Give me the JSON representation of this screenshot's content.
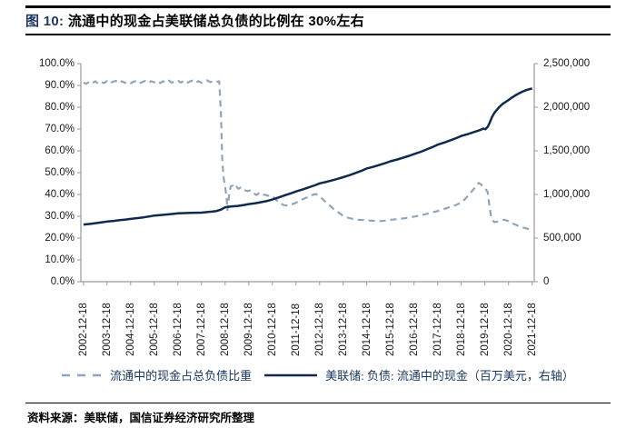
{
  "header": {
    "figure_label": "图 10:",
    "title": "流通中的现金占美联储总负债的比例在 30%左右"
  },
  "footer": {
    "source_label": "资料来源：",
    "source_text": "美联储，国信证券经济研究所整理"
  },
  "colors": {
    "ratio_line": "#8FA5BC",
    "cash_line": "#10294E",
    "axis": "#9a9a9a",
    "figure_number_accent": "#1F3864"
  },
  "chart_data": {
    "type": "line",
    "title": "流通中的现金占美联储总负债的比例在 30%左右",
    "legend_position": "bottom",
    "grid": false,
    "x_domain": [
      2002.85,
      2022.05
    ],
    "x_axis": {
      "tick_labels": [
        "2002-12-18",
        "2003-12-18",
        "2004-12-18",
        "2005-12-18",
        "2006-12-18",
        "2007-12-18",
        "2008-12-18",
        "2009-12-18",
        "2010-12-18",
        "2011-12-18",
        "2012-12-18",
        "2013-12-18",
        "2014-12-18",
        "2015-12-18",
        "2016-12-18",
        "2017-12-18",
        "2018-12-18",
        "2019-12-18",
        "2020-12-18",
        "2021-12-18"
      ],
      "tick_years": [
        2002.96,
        2003.96,
        2004.96,
        2005.96,
        2006.96,
        2007.96,
        2008.96,
        2009.96,
        2010.96,
        2011.96,
        2012.96,
        2013.96,
        2014.96,
        2015.96,
        2016.96,
        2017.96,
        2018.96,
        2019.96,
        2020.96,
        2021.96
      ]
    },
    "left_axis": {
      "min": 0,
      "max": 100,
      "tick_values": [
        100,
        90,
        80,
        70,
        60,
        50,
        40,
        30,
        20,
        10,
        0
      ],
      "tick_labels": [
        "100.0%",
        "90.0%",
        "80.0%",
        "70.0%",
        "60.0%",
        "50.0%",
        "40.0%",
        "30.0%",
        "20.0%",
        "10.0%",
        "0.0%"
      ]
    },
    "right_axis": {
      "min": 0,
      "max": 2500000,
      "tick_values": [
        2500000,
        2000000,
        1500000,
        1000000,
        500000,
        0
      ],
      "tick_labels": [
        "2,500,000",
        "2,000,000",
        "1,500,000",
        "1,000,000",
        "500,000",
        "0"
      ]
    },
    "series": [
      {
        "name": "流通中的现金占总负债比重",
        "axis": "left",
        "style": "dashed",
        "color": "#8FA5BC",
        "points": [
          [
            2002.96,
            91.3
          ],
          [
            2003.08,
            90.7
          ],
          [
            2003.21,
            91.8
          ],
          [
            2003.33,
            91.0
          ],
          [
            2003.46,
            91.9
          ],
          [
            2003.58,
            90.8
          ],
          [
            2003.71,
            91.6
          ],
          [
            2003.83,
            91.1
          ],
          [
            2003.96,
            92.0
          ],
          [
            2004.08,
            91.0
          ],
          [
            2004.21,
            91.7
          ],
          [
            2004.33,
            92.1
          ],
          [
            2004.46,
            91.1
          ],
          [
            2004.58,
            91.9
          ],
          [
            2004.71,
            91.2
          ],
          [
            2004.83,
            91.8
          ],
          [
            2004.96,
            91.0
          ],
          [
            2005.08,
            91.7
          ],
          [
            2005.21,
            92.0
          ],
          [
            2005.33,
            90.9
          ],
          [
            2005.46,
            91.6
          ],
          [
            2005.58,
            92.1
          ],
          [
            2005.71,
            91.2
          ],
          [
            2005.83,
            91.9
          ],
          [
            2005.96,
            91.4
          ],
          [
            2006.08,
            92.1
          ],
          [
            2006.21,
            91.1
          ],
          [
            2006.33,
            91.9
          ],
          [
            2006.46,
            91.3
          ],
          [
            2006.58,
            92.2
          ],
          [
            2006.71,
            91.2
          ],
          [
            2006.83,
            92.0
          ],
          [
            2006.96,
            92.3
          ],
          [
            2007.08,
            91.3
          ],
          [
            2007.21,
            92.0
          ],
          [
            2007.33,
            91.0
          ],
          [
            2007.46,
            91.8
          ],
          [
            2007.58,
            92.2
          ],
          [
            2007.71,
            91.3
          ],
          [
            2007.83,
            91.9
          ],
          [
            2007.96,
            91.2
          ],
          [
            2008.08,
            91.9
          ],
          [
            2008.21,
            92.3
          ],
          [
            2008.33,
            91.5
          ],
          [
            2008.46,
            92.0
          ],
          [
            2008.58,
            91.6
          ],
          [
            2008.71,
            91.9
          ],
          [
            2008.78,
            78.0
          ],
          [
            2008.84,
            55.0
          ],
          [
            2008.9,
            47.5
          ],
          [
            2008.96,
            43.5
          ],
          [
            2009.02,
            38.5
          ],
          [
            2009.06,
            32.8
          ],
          [
            2009.1,
            36.5
          ],
          [
            2009.14,
            41.0
          ],
          [
            2009.2,
            43.8
          ],
          [
            2009.28,
            44.0
          ],
          [
            2009.36,
            42.8
          ],
          [
            2009.44,
            43.6
          ],
          [
            2009.52,
            42.6
          ],
          [
            2009.62,
            43.2
          ],
          [
            2009.72,
            42.2
          ],
          [
            2009.82,
            41.8
          ],
          [
            2009.92,
            41.6
          ],
          [
            2010.04,
            41.9
          ],
          [
            2010.16,
            40.6
          ],
          [
            2010.28,
            39.8
          ],
          [
            2010.4,
            40.6
          ],
          [
            2010.52,
            39.6
          ],
          [
            2010.64,
            39.9
          ],
          [
            2010.76,
            39.4
          ],
          [
            2010.88,
            39.7
          ],
          [
            2011.0,
            38.9
          ],
          [
            2011.15,
            37.2
          ],
          [
            2011.3,
            35.9
          ],
          [
            2011.45,
            35.1
          ],
          [
            2011.6,
            34.9
          ],
          [
            2011.75,
            35.3
          ],
          [
            2011.9,
            35.9
          ],
          [
            2012.05,
            36.7
          ],
          [
            2012.2,
            37.6
          ],
          [
            2012.35,
            38.3
          ],
          [
            2012.5,
            39.0
          ],
          [
            2012.65,
            39.8
          ],
          [
            2012.8,
            40.2
          ],
          [
            2012.95,
            39.2
          ],
          [
            2013.1,
            37.8
          ],
          [
            2013.25,
            36.2
          ],
          [
            2013.4,
            34.8
          ],
          [
            2013.55,
            33.4
          ],
          [
            2013.7,
            32.2
          ],
          [
            2013.85,
            31.0
          ],
          [
            2014.0,
            30.0
          ],
          [
            2014.2,
            29.2
          ],
          [
            2014.4,
            28.7
          ],
          [
            2014.6,
            28.4
          ],
          [
            2014.8,
            28.3
          ],
          [
            2015.0,
            28.1
          ],
          [
            2015.25,
            27.9
          ],
          [
            2015.5,
            27.8
          ],
          [
            2015.75,
            28.0
          ],
          [
            2016.0,
            28.4
          ],
          [
            2016.25,
            28.7
          ],
          [
            2016.5,
            29.0
          ],
          [
            2016.75,
            29.4
          ],
          [
            2017.0,
            29.9
          ],
          [
            2017.25,
            30.5
          ],
          [
            2017.5,
            31.1
          ],
          [
            2017.75,
            31.8
          ],
          [
            2018.0,
            32.5
          ],
          [
            2018.25,
            33.4
          ],
          [
            2018.5,
            34.3
          ],
          [
            2018.75,
            35.2
          ],
          [
            2019.0,
            36.6
          ],
          [
            2019.15,
            38.2
          ],
          [
            2019.3,
            40.0
          ],
          [
            2019.45,
            42.0
          ],
          [
            2019.58,
            43.8
          ],
          [
            2019.7,
            45.3
          ],
          [
            2019.8,
            44.6
          ],
          [
            2019.9,
            43.4
          ],
          [
            2019.98,
            42.8
          ],
          [
            2020.08,
            41.0
          ],
          [
            2020.16,
            34.0
          ],
          [
            2020.24,
            28.8
          ],
          [
            2020.36,
            27.3
          ],
          [
            2020.5,
            27.6
          ],
          [
            2020.64,
            28.1
          ],
          [
            2020.78,
            28.4
          ],
          [
            2020.92,
            27.9
          ],
          [
            2021.06,
            27.1
          ],
          [
            2021.2,
            26.4
          ],
          [
            2021.35,
            25.7
          ],
          [
            2021.5,
            25.1
          ],
          [
            2021.65,
            24.6
          ],
          [
            2021.8,
            24.2
          ],
          [
            2021.96,
            23.8
          ]
        ]
      },
      {
        "name": "美联储: 负债: 流通中的现金（百万美元，右轴）",
        "axis": "right",
        "style": "solid",
        "color": "#10294E",
        "points": [
          [
            2002.96,
            655000
          ],
          [
            2003.25,
            663000
          ],
          [
            2003.5,
            672000
          ],
          [
            2003.75,
            681000
          ],
          [
            2003.96,
            690000
          ],
          [
            2004.25,
            697000
          ],
          [
            2004.5,
            705000
          ],
          [
            2004.75,
            713000
          ],
          [
            2004.96,
            720000
          ],
          [
            2005.25,
            729000
          ],
          [
            2005.5,
            738000
          ],
          [
            2005.75,
            748000
          ],
          [
            2005.96,
            758000
          ],
          [
            2006.25,
            765000
          ],
          [
            2006.5,
            771000
          ],
          [
            2006.75,
            777000
          ],
          [
            2006.96,
            783000
          ],
          [
            2007.25,
            786000
          ],
          [
            2007.5,
            789000
          ],
          [
            2007.75,
            791000
          ],
          [
            2007.96,
            792000
          ],
          [
            2008.2,
            798000
          ],
          [
            2008.4,
            803000
          ],
          [
            2008.6,
            810000
          ],
          [
            2008.8,
            828000
          ],
          [
            2008.96,
            853000
          ],
          [
            2009.2,
            861000
          ],
          [
            2009.5,
            869000
          ],
          [
            2009.75,
            879000
          ],
          [
            2009.96,
            890000
          ],
          [
            2010.25,
            900000
          ],
          [
            2010.5,
            912000
          ],
          [
            2010.75,
            926000
          ],
          [
            2010.96,
            942000
          ],
          [
            2011.25,
            968000
          ],
          [
            2011.5,
            992000
          ],
          [
            2011.75,
            1014000
          ],
          [
            2011.96,
            1034000
          ],
          [
            2012.25,
            1058000
          ],
          [
            2012.5,
            1081000
          ],
          [
            2012.75,
            1104000
          ],
          [
            2012.96,
            1127000
          ],
          [
            2013.25,
            1145000
          ],
          [
            2013.5,
            1163000
          ],
          [
            2013.75,
            1181000
          ],
          [
            2013.96,
            1198000
          ],
          [
            2014.25,
            1223000
          ],
          [
            2014.5,
            1248000
          ],
          [
            2014.75,
            1273000
          ],
          [
            2014.96,
            1298000
          ],
          [
            2015.25,
            1319000
          ],
          [
            2015.5,
            1340000
          ],
          [
            2015.75,
            1360000
          ],
          [
            2015.96,
            1380000
          ],
          [
            2016.25,
            1401000
          ],
          [
            2016.5,
            1422000
          ],
          [
            2016.75,
            1443000
          ],
          [
            2016.96,
            1463000
          ],
          [
            2017.25,
            1490000
          ],
          [
            2017.5,
            1517000
          ],
          [
            2017.75,
            1544000
          ],
          [
            2017.96,
            1571000
          ],
          [
            2018.25,
            1596000
          ],
          [
            2018.5,
            1621000
          ],
          [
            2018.75,
            1646000
          ],
          [
            2018.96,
            1671000
          ],
          [
            2019.25,
            1693000
          ],
          [
            2019.5,
            1716000
          ],
          [
            2019.75,
            1738000
          ],
          [
            2019.9,
            1755000
          ],
          [
            2019.98,
            1748000
          ],
          [
            2020.08,
            1775000
          ],
          [
            2020.16,
            1820000
          ],
          [
            2020.25,
            1880000
          ],
          [
            2020.35,
            1930000
          ],
          [
            2020.45,
            1965000
          ],
          [
            2020.58,
            2005000
          ],
          [
            2020.72,
            2040000
          ],
          [
            2020.85,
            2062000
          ],
          [
            2020.96,
            2082000
          ],
          [
            2021.1,
            2110000
          ],
          [
            2021.25,
            2135000
          ],
          [
            2021.4,
            2158000
          ],
          [
            2021.55,
            2178000
          ],
          [
            2021.7,
            2195000
          ],
          [
            2021.85,
            2207000
          ],
          [
            2021.96,
            2215000
          ]
        ]
      }
    ]
  }
}
